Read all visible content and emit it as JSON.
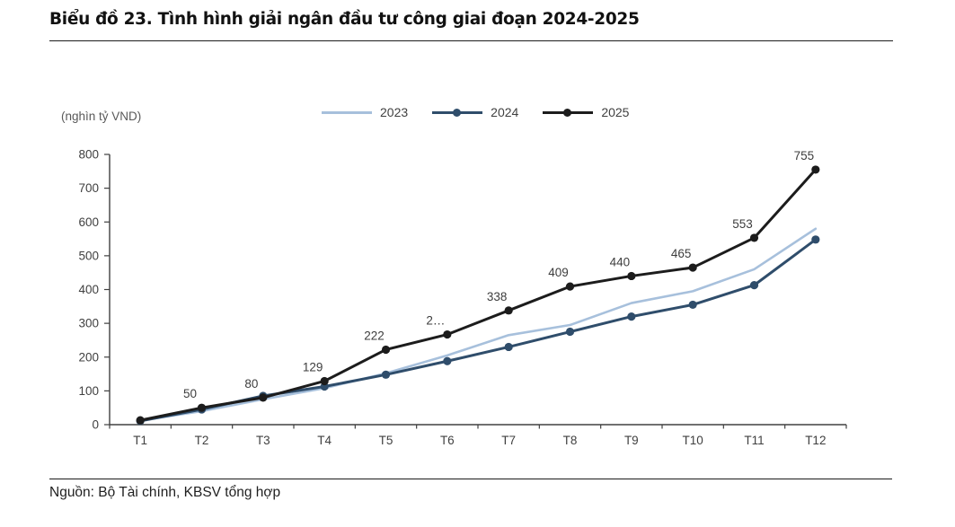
{
  "page": {
    "title": "Biểu đồ 23. Tình hình giải ngân đầu tư công giai đoạn 2024-2025",
    "source": "Nguồn: Bộ Tài chính, KBSV tổng hợp"
  },
  "chart_data": {
    "type": "line",
    "title": "Biểu đồ 23. Tình hình giải ngân đầu tư công giai đoạn 2024-2025",
    "unit_label": "(nghìn tỷ VND)",
    "xlabel": "",
    "ylabel": "nghìn tỷ VND",
    "categories": [
      "T1",
      "T2",
      "T3",
      "T4",
      "T5",
      "T6",
      "T7",
      "T8",
      "T9",
      "T10",
      "T11",
      "T12"
    ],
    "ylim": [
      0,
      800
    ],
    "ytick_step": 100,
    "yticks": [
      0,
      100,
      200,
      300,
      400,
      500,
      600,
      700,
      800
    ],
    "grid": false,
    "legend_position": "top-center",
    "axis_color": "#404040",
    "tick_label_color": "#404040",
    "data_label_color": "#3d3d3d",
    "series": [
      {
        "name": "2023",
        "color": "#a7c0dc",
        "marker": false,
        "line_width": 2.6,
        "values": [
          12,
          40,
          75,
          108,
          152,
          205,
          265,
          295,
          360,
          395,
          460,
          580
        ]
      },
      {
        "name": "2024",
        "color": "#2f4d6b",
        "marker": true,
        "line_width": 3,
        "values": [
          11,
          45,
          85,
          113,
          148,
          188,
          230,
          275,
          320,
          355,
          413,
          548
        ]
      },
      {
        "name": "2025",
        "color": "#1c1c1c",
        "marker": true,
        "line_width": 3,
        "values": [
          13,
          50,
          80,
          129,
          222,
          267,
          338,
          409,
          440,
          465,
          553,
          755
        ],
        "labels": [
          "",
          "50",
          "80",
          "129",
          "222",
          "2…",
          "338",
          "409",
          "440",
          "465",
          "553",
          "755"
        ]
      }
    ]
  }
}
